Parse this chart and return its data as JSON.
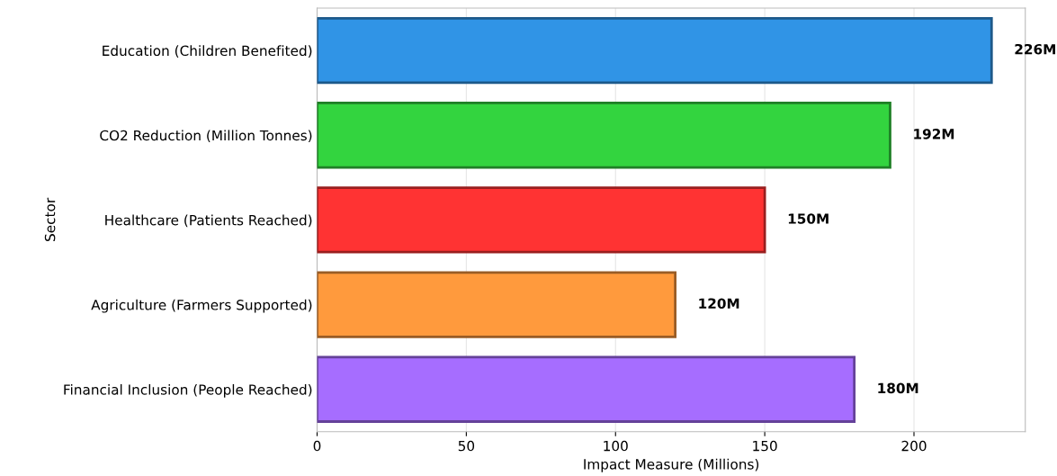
{
  "chart_data": {
    "type": "bar",
    "orientation": "horizontal",
    "xlabel": "Impact Measure (Millions)",
    "ylabel": "Sector",
    "categories": [
      "Education (Children Benefited)",
      "CO2 Reduction (Million Tonnes)",
      "Healthcare (Patients Reached)",
      "Agriculture (Farmers Supported)",
      "Financial Inclusion (People Reached)"
    ],
    "values": [
      226,
      192,
      150,
      120,
      180
    ],
    "value_labels": [
      "226M",
      "192M",
      "150M",
      "120M",
      "180M"
    ],
    "colors": [
      "#3094e6",
      "#33d43f",
      "#ff3333",
      "#ff9a3d",
      "#a66dff"
    ],
    "xlim": [
      0,
      237.3
    ],
    "xticks": [
      0,
      50,
      100,
      150,
      200
    ],
    "grid": "x",
    "legend": false
  }
}
